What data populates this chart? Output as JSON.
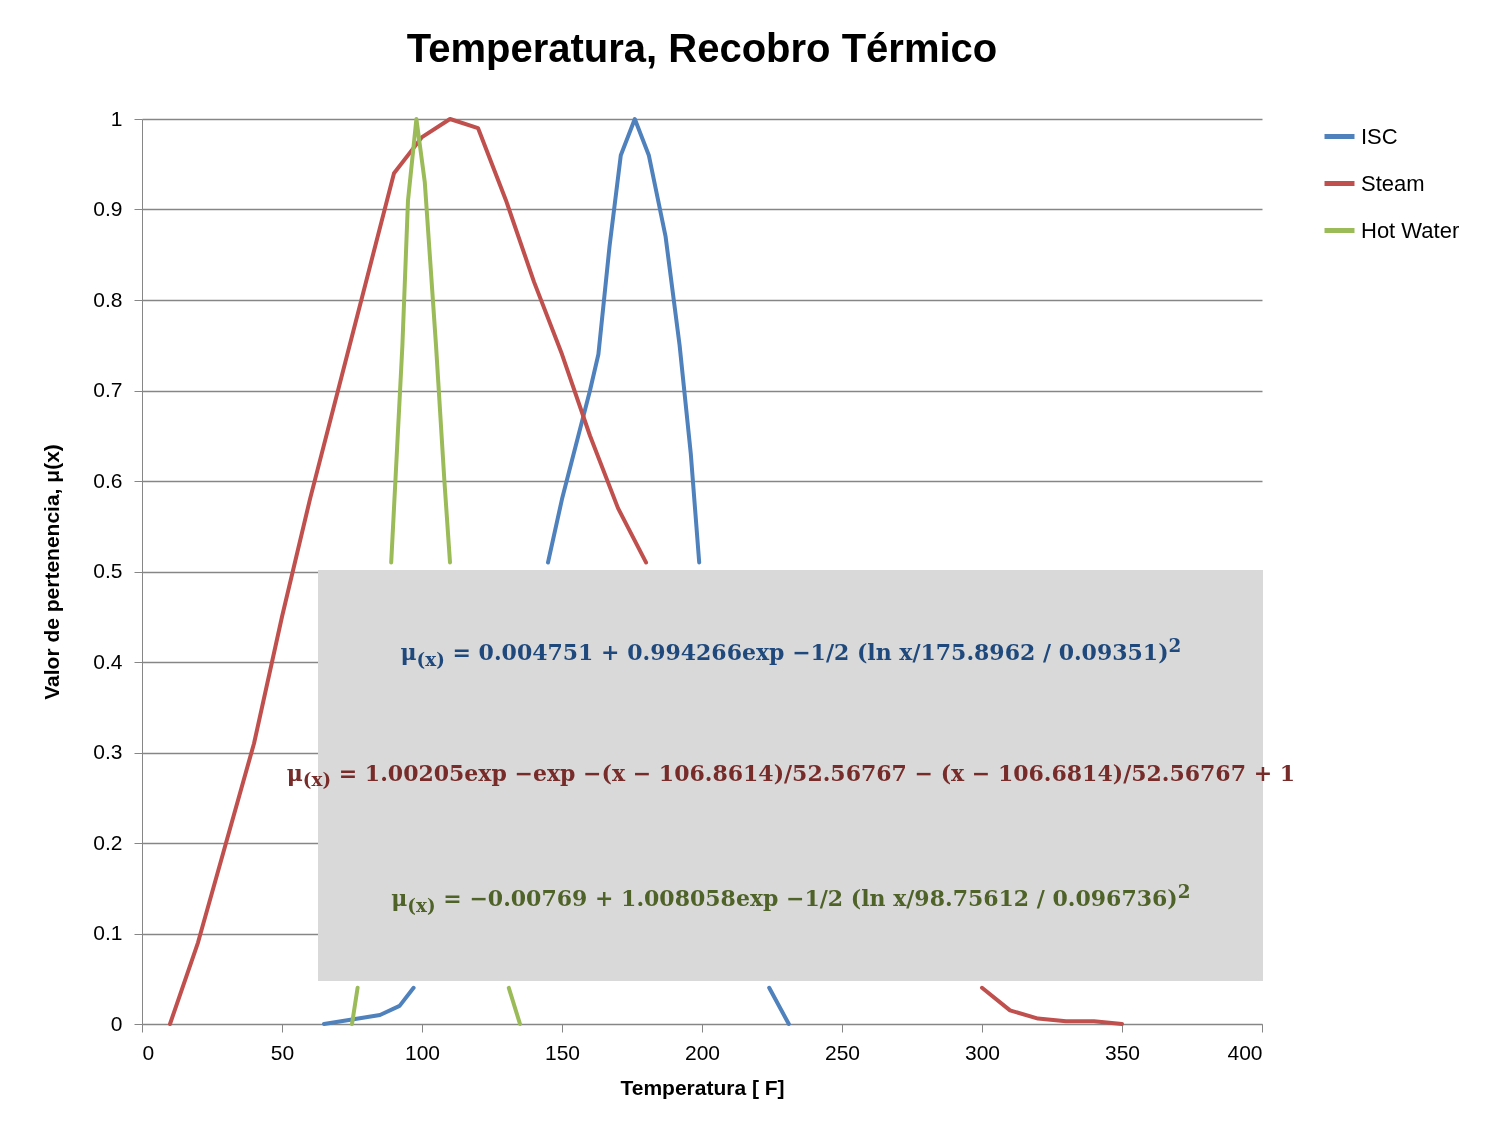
{
  "chart_data": {
    "type": "line",
    "title": "Temperatura, Recobro Térmico",
    "xlabel": "Temperatura [ F]",
    "ylabel": "Valor de pertenencia,  μ(x)",
    "xlim": [
      0,
      400
    ],
    "xticks": [
      0,
      50,
      100,
      150,
      200,
      250,
      300,
      350,
      400
    ],
    "ylim": [
      0,
      1
    ],
    "yticks": [
      0,
      0.1,
      0.2,
      0.3,
      0.4,
      0.5,
      0.6,
      0.7,
      0.8,
      0.9,
      1
    ],
    "grid": "y",
    "legend": "right",
    "series": [
      {
        "name": "ISC",
        "color": "#4f81bd",
        "x": [
          65,
          75,
          85,
          92,
          97,
          120,
          145,
          150,
          155,
          160,
          163,
          167,
          171,
          176,
          181,
          187,
          192,
          196,
          199,
          210,
          224,
          231
        ],
        "values": [
          0,
          0.005,
          0.01,
          0.02,
          0.04,
          null,
          0.51,
          0.58,
          0.64,
          0.7,
          0.74,
          0.86,
          0.96,
          1,
          0.96,
          0.87,
          0.75,
          0.63,
          0.51,
          null,
          0.04,
          0
        ]
      },
      {
        "name": "Steam",
        "color": "#c0504d",
        "x": [
          10,
          20,
          30,
          40,
          50,
          60,
          70,
          80,
          90,
          100,
          110,
          120,
          130,
          140,
          150,
          160,
          170,
          180,
          240,
          300,
          310,
          320,
          330,
          340,
          350
        ],
        "values": [
          0,
          0.09,
          0.2,
          0.31,
          0.45,
          0.58,
          0.7,
          0.82,
          0.94,
          0.98,
          1,
          0.99,
          0.91,
          0.82,
          0.74,
          0.65,
          0.57,
          0.51,
          null,
          0.04,
          0.015,
          0.006,
          0.003,
          0.003,
          0
        ]
      },
      {
        "name": "Hot Water",
        "color": "#9bbb59",
        "x": [
          75,
          77,
          83,
          89,
          93,
          95,
          98,
          101,
          105,
          108,
          110,
          120,
          131,
          135
        ],
        "values": [
          0,
          0.04,
          null,
          0.51,
          0.75,
          0.91,
          1,
          0.93,
          0.75,
          0.6,
          0.51,
          null,
          0.04,
          0
        ]
      }
    ],
    "annotations": [
      "μ$_{(x)}$ = 0.004751 + 0.994266exp −1/2 (ln x/175.8962 / 0.09351)$^{2}$",
      "μ$_{(x)}$ = 1.00205exp −exp −(x − 106.8614)/52.56767 − (x − 106.6814)/52.56767 + 1",
      "μ$_{(x)}$ = −0.00769 + 1.008058exp −1/2 (ln x/98.75612 / 0.096736)$^{2}$"
    ]
  }
}
